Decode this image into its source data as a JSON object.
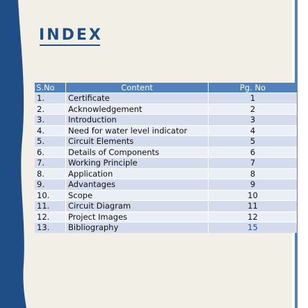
{
  "title": "INDEX",
  "colors": {
    "background": "#f1efe6",
    "left_band": "#1f4e86",
    "right_band": "#4f81bd",
    "header": "#4f81bd",
    "row_dark": "#d3dbed",
    "row_light": "#eaeef7"
  },
  "table": {
    "headers": {
      "sno": "S.No",
      "content": "Content",
      "page": "Pg. No"
    },
    "rows": [
      {
        "sno": "1.",
        "content": "Certificate",
        "page": "1"
      },
      {
        "sno": "2.",
        "content": "Acknowledgement",
        "page": "2"
      },
      {
        "sno": "3.",
        "content": "Introduction",
        "page": "3"
      },
      {
        "sno": "4.",
        "content": "Need for water level indicator",
        "page": "4"
      },
      {
        "sno": "5.",
        "content": "Circuit Elements",
        "page": "5"
      },
      {
        "sno": "6.",
        "content": "Details of Components",
        "page": "6"
      },
      {
        "sno": "7.",
        "content": "Working Principle",
        "page": "7"
      },
      {
        "sno": "8.",
        "content": "Application",
        "page": "8"
      },
      {
        "sno": "9.",
        "content": "Advantages",
        "page": "9"
      },
      {
        "sno": "10.",
        "content": "Scope",
        "page": "10"
      },
      {
        "sno": "11.",
        "content": "Circuit Diagram",
        "page": "11"
      },
      {
        "sno": "12.",
        "content": "Project Images",
        "page": "12"
      },
      {
        "sno": "13.",
        "content": "Bibliography",
        "page": "15"
      }
    ]
  }
}
